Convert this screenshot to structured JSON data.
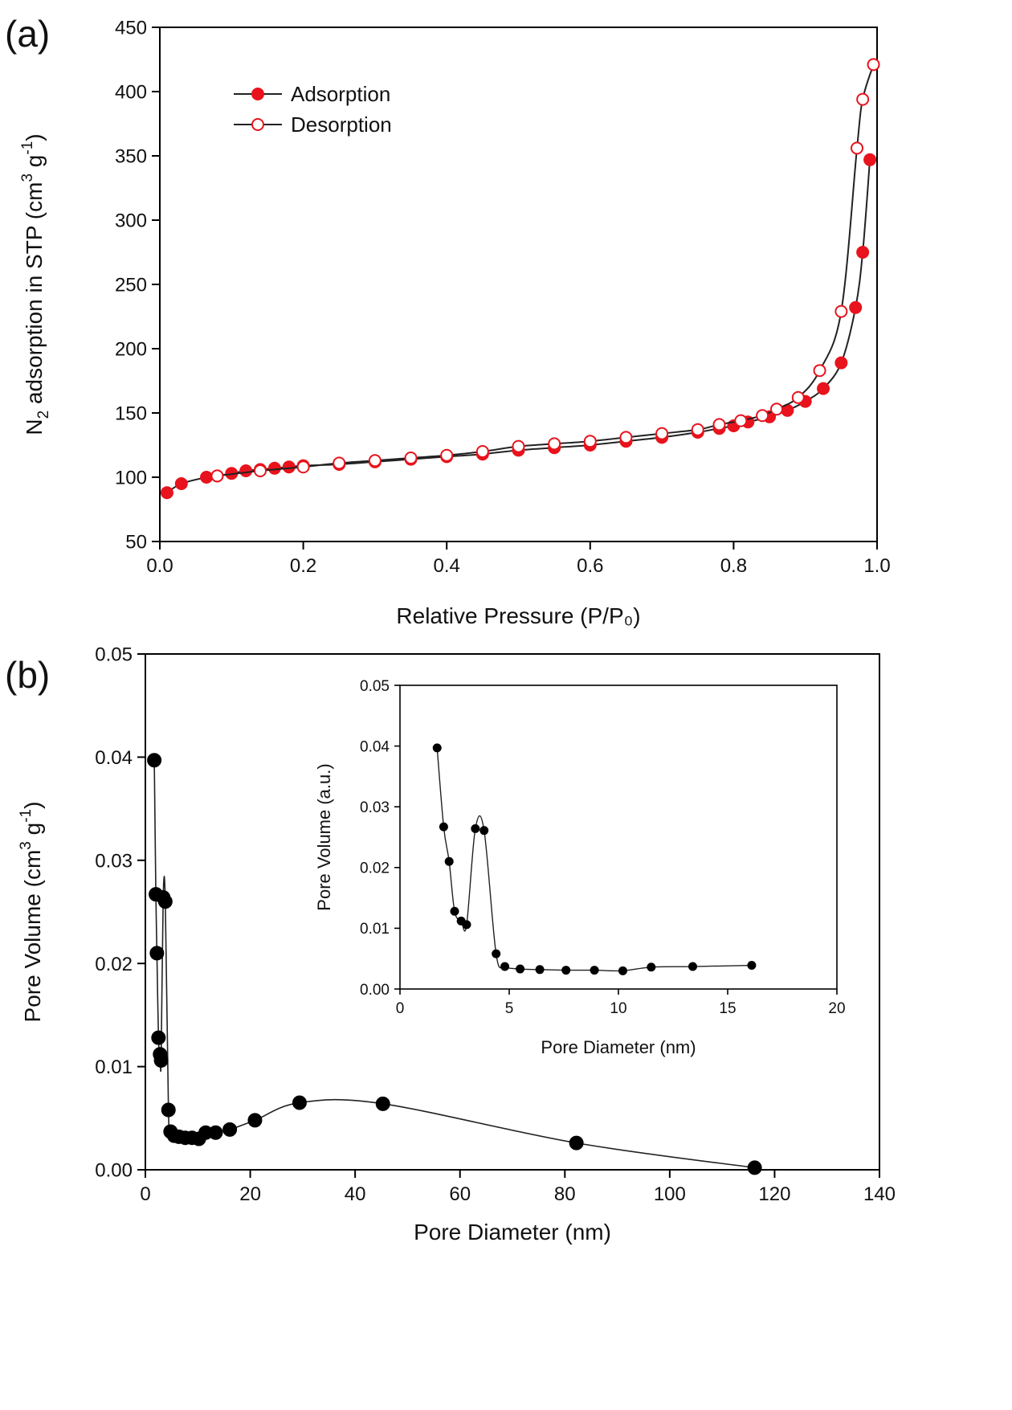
{
  "colors": {
    "axis": "#000000",
    "line": "#222222",
    "adsorption": "#e8131d",
    "desorption_fill": "#ffffff",
    "pore": "#000000"
  },
  "chart_data": [
    {
      "id": "a",
      "panel_label": "(a)",
      "type": "scatter",
      "xlabel": "Relative Pressure (P/P₀)",
      "ylabel_parts": {
        "n": "N",
        "sub": "2",
        "mid": " adsorption in STP (cm",
        "sup1": "3",
        "g": " g",
        "sup2": "-1",
        "end": ")"
      },
      "xlim": [
        0,
        1.0
      ],
      "ylim": [
        50,
        450
      ],
      "xticks": [
        "0.0",
        "0.2",
        "0.4",
        "0.6",
        "0.8",
        "1.0"
      ],
      "yticks": [
        "50",
        "100",
        "150",
        "200",
        "250",
        "300",
        "350",
        "400",
        "450"
      ],
      "grid": false,
      "legend_position": "top-left",
      "series": [
        {
          "name": "Adsorption",
          "marker": "filled-circle",
          "x": [
            0.01,
            0.03,
            0.065,
            0.08,
            0.1,
            0.12,
            0.14,
            0.16,
            0.18,
            0.2,
            0.25,
            0.3,
            0.35,
            0.4,
            0.45,
            0.5,
            0.55,
            0.6,
            0.65,
            0.7,
            0.75,
            0.78,
            0.8,
            0.82,
            0.85,
            0.875,
            0.9,
            0.925,
            0.95,
            0.97,
            0.98,
            0.99
          ],
          "y": [
            88,
            95,
            100,
            101,
            103,
            105,
            106,
            107,
            108,
            109,
            110,
            112,
            114,
            116,
            118,
            121,
            123,
            125,
            128,
            131,
            135,
            138,
            140,
            143,
            147,
            152,
            159,
            169,
            189,
            232,
            275,
            347
          ]
        },
        {
          "name": "Desorption",
          "marker": "open-circle",
          "x": [
            0.995,
            0.98,
            0.972,
            0.95,
            0.92,
            0.89,
            0.86,
            0.84,
            0.81,
            0.78,
            0.75,
            0.7,
            0.65,
            0.6,
            0.55,
            0.5,
            0.45,
            0.4,
            0.35,
            0.3,
            0.25,
            0.2,
            0.14,
            0.08
          ],
          "y": [
            421,
            394,
            356,
            229,
            183,
            162,
            153,
            148,
            144,
            141,
            137,
            134,
            131,
            128,
            126,
            124,
            120,
            117,
            115,
            113,
            111,
            108,
            105,
            101
          ]
        }
      ]
    },
    {
      "id": "b",
      "panel_label": "(b)",
      "type": "line",
      "xlabel": "Pore Diameter (nm)",
      "ylabel_parts": {
        "mid": "Pore Volume (cm",
        "sup1": "3",
        "g": " g",
        "sup2": "-1",
        "end": ")"
      },
      "xlim": [
        0,
        140
      ],
      "ylim": [
        0,
        0.05
      ],
      "xticks": [
        "0",
        "20",
        "40",
        "60",
        "80",
        "100",
        "120",
        "140"
      ],
      "yticks": [
        "0.00",
        "0.01",
        "0.02",
        "0.03",
        "0.04",
        "0.05"
      ],
      "grid": false,
      "series": [
        {
          "marker": "filled-circle",
          "x": [
            1.7,
            2.0,
            2.2,
            2.5,
            2.8,
            3.0,
            3.4,
            3.8,
            4.4,
            4.8,
            5.5,
            6.4,
            7.6,
            8.9,
            10.2,
            11.5,
            13.4,
            16.1,
            20.9,
            29.4,
            45.3,
            82.2,
            116.2
          ],
          "y": [
            0.0397,
            0.0267,
            0.021,
            0.0128,
            0.0112,
            0.0106,
            0.0264,
            0.026,
            0.0058,
            0.0037,
            0.0033,
            0.0032,
            0.0031,
            0.0031,
            0.003,
            0.0036,
            0.0036,
            0.0039,
            0.0048,
            0.0065,
            0.0064,
            0.0026,
            0.0002
          ]
        }
      ]
    },
    {
      "id": "b-inset",
      "type": "line",
      "xlabel": "Pore Diameter (nm)",
      "ylabel": "Pore Volume (a.u.)",
      "xlim": [
        0,
        20
      ],
      "ylim": [
        0,
        0.05
      ],
      "xticks": [
        "0",
        "5",
        "10",
        "15",
        "20"
      ],
      "yticks": [
        "0.00",
        "0.01",
        "0.02",
        "0.03",
        "0.04",
        "0.05"
      ],
      "grid": false,
      "series": [
        {
          "marker": "small-filled-circle",
          "x": [
            1.7,
            2.0,
            2.25,
            2.5,
            2.8,
            3.05,
            3.45,
            3.85,
            4.4,
            4.8,
            5.5,
            6.4,
            7.6,
            8.9,
            10.2,
            11.5,
            13.4,
            16.1
          ],
          "y": [
            0.0397,
            0.0267,
            0.021,
            0.0128,
            0.0112,
            0.0106,
            0.0264,
            0.0261,
            0.0058,
            0.0037,
            0.0033,
            0.0032,
            0.0031,
            0.0031,
            0.003,
            0.0036,
            0.0037,
            0.0039
          ]
        }
      ]
    }
  ]
}
